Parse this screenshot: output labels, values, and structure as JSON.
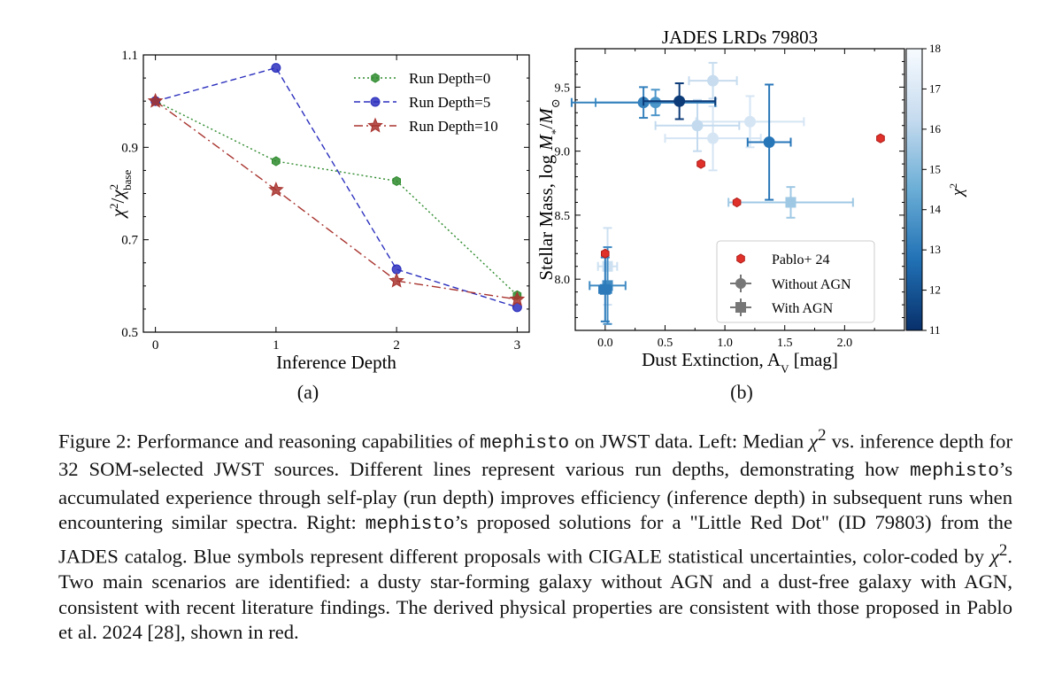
{
  "chart_data": [
    {
      "type": "line",
      "panel": "(a)",
      "xlabel": "Inference Depth",
      "ylabel": "χ²/χ²_base",
      "xlim": [
        -0.1,
        3.1
      ],
      "ylim": [
        0.5,
        1.1
      ],
      "xticks": [
        0,
        1,
        2,
        3
      ],
      "yticks": [
        0.5,
        0.7,
        0.9,
        1.1
      ],
      "ytick_labels": [
        "0.5",
        "0.7",
        "0.9",
        "1.1"
      ],
      "grid": false,
      "legend_position": "top-right",
      "series": [
        {
          "name": "Run Depth=0",
          "x": [
            0,
            1,
            2,
            3
          ],
          "y": [
            1.0,
            0.87,
            0.827,
            0.58
          ],
          "color": "#2e8b2e",
          "marker": "hexagon",
          "linestyle": "dotted"
        },
        {
          "name": "Run Depth=5",
          "x": [
            0,
            1,
            2,
            3
          ],
          "y": [
            1.0,
            1.072,
            0.636,
            0.554
          ],
          "color": "#2b2fbd",
          "marker": "circle",
          "linestyle": "dashed"
        },
        {
          "name": "Run Depth=10",
          "x": [
            0,
            1,
            2,
            3
          ],
          "y": [
            1.0,
            0.808,
            0.611,
            0.571
          ],
          "color": "#a8342f",
          "marker": "star",
          "linestyle": "dashdot"
        }
      ]
    },
    {
      "type": "scatter",
      "panel": "(b)",
      "title": "JADES LRDs 79803",
      "xlabel": "Dust Extinction, A_V [mag]",
      "ylabel": "Stellar Mass, log M*/M⊙",
      "xlim": [
        -0.25,
        2.5
      ],
      "ylim": [
        7.6,
        9.8
      ],
      "xticks": [
        0.0,
        0.5,
        1.0,
        1.5,
        2.0
      ],
      "xtick_labels": [
        "0.0",
        "0.5",
        "1.0",
        "1.5",
        "2.0"
      ],
      "yticks": [
        8.0,
        8.5,
        9.0,
        9.5
      ],
      "ytick_labels": [
        "8.0",
        "8.5",
        "9.0",
        "9.5"
      ],
      "legend_position": "bottom-right",
      "legend": [
        "Pablo+ 24",
        "Without AGN",
        "With AGN"
      ],
      "colorbar": {
        "label": "χ²",
        "min": 11,
        "max": 18,
        "ticks": [
          11,
          12,
          13,
          14,
          15,
          16,
          17,
          18
        ],
        "colors": [
          "#08306b",
          "#2171b5",
          "#6baed6",
          "#c6dbef",
          "#f7fbff"
        ]
      },
      "pablo_points": [
        {
          "x": 0.0,
          "y": 8.2
        },
        {
          "x": 0.8,
          "y": 8.9
        },
        {
          "x": 1.1,
          "y": 8.6
        },
        {
          "x": 2.3,
          "y": 9.1
        }
      ],
      "without_agn": [
        {
          "x": 0.32,
          "y": 9.38,
          "xerr": 0.6,
          "yerr": 0.12,
          "chi2": 13.2
        },
        {
          "x": 0.42,
          "y": 9.38,
          "xerr": 0.5,
          "yerr": 0.1,
          "chi2": 13.8
        },
        {
          "x": 0.62,
          "y": 9.39,
          "xerr": 0.3,
          "yerr": 0.14,
          "chi2": 11.3
        },
        {
          "x": 0.9,
          "y": 9.55,
          "xerr": 0.2,
          "yerr": 0.14,
          "chi2": 16.3
        },
        {
          "x": 0.77,
          "y": 9.2,
          "xerr": 0.35,
          "yerr": 0.2,
          "chi2": 16.2
        },
        {
          "x": 0.9,
          "y": 9.1,
          "xerr": 0.4,
          "yerr": 0.25,
          "chi2": 16.8
        },
        {
          "x": 1.21,
          "y": 9.23,
          "xerr": 0.45,
          "yerr": 0.2,
          "chi2": 16.8
        },
        {
          "x": 1.37,
          "y": 9.07,
          "xerr": 0.18,
          "yerr": 0.45,
          "chi2": 12.9
        }
      ],
      "with_agn": [
        {
          "x": 0.02,
          "y": 8.1,
          "xerr": 0.08,
          "yerr": 0.3,
          "chi2": 16.5
        },
        {
          "x": 0.02,
          "y": 7.95,
          "xerr": 0.15,
          "yerr": 0.3,
          "chi2": 13.5
        },
        {
          "x": 0.0,
          "y": 7.92,
          "xerr": 0.05,
          "yerr": 0.25,
          "chi2": 13.0
        },
        {
          "x": 1.55,
          "y": 8.6,
          "xerr": 0.52,
          "yerr": 0.12,
          "chi2": 15.5
        }
      ]
    }
  ],
  "subcaptions": {
    "a": "(a)",
    "b": "(b)"
  },
  "caption": {
    "label": "Figure 2:",
    "s1": " Performance and reasoning capabilities of ",
    "code": "mephisto",
    "s2": " on JWST data.  Left: Median ",
    "chi": "χ",
    "s3": " vs.  inference depth for 32 SOM-selected JWST sources.  Different lines represent various run depths, demonstrating how ",
    "s4": "’s accumulated experience through self-play (run depth) improves efficiency (inference depth) in subsequent runs when encountering similar spectra. Right: ",
    "s5": "’s proposed solutions for a \"Little Red Dot\" (ID 79803) from the JADES catalog. Blue symbols represent different proposals with CIGALE statistical uncertainties, color-coded by ",
    "s6": ". Two main scenarios are identified: a dusty star-forming galaxy without AGN and a dust-free galaxy with AGN, consistent with recent literature findings. The derived physical properties are consistent with those proposed in Pablo et al. 2024 [28], shown in red.",
    "sup": "2"
  }
}
